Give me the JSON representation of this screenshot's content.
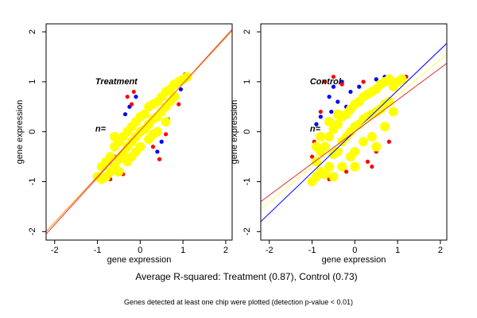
{
  "chart_data": [
    {
      "type": "scatter",
      "xlabel": "gene expression",
      "ylabel": "gene expression",
      "annotations": [
        "Treatment",
        "n="
      ],
      "xlim": [
        -2.2,
        2.15
      ],
      "ylim": [
        -2.17,
        2.16
      ],
      "xticks": [
        -2,
        -1,
        0,
        1,
        2
      ],
      "yticks": [
        -2,
        -1,
        0,
        1,
        2
      ],
      "series": [
        {
          "color": "#0000ff",
          "x": [
            -0.25,
            0.65,
            -0.9,
            0.5,
            0.4,
            -0.1,
            0.95,
            -0.35
          ],
          "y": [
            0.5,
            0.25,
            -0.95,
            -0.2,
            -0.4,
            0.7,
            0.85,
            0.35
          ]
        },
        {
          "color": "#ff0000",
          "x": [
            -0.3,
            -0.2,
            0.5,
            0.6,
            -0.7,
            -0.4,
            0.45,
            0.9,
            -0.15,
            0.3,
            -0.6,
            1.05
          ],
          "y": [
            0.7,
            0.55,
            0.35,
            -0.05,
            -0.95,
            -0.85,
            -0.55,
            0.55,
            0.8,
            -0.3,
            -0.5,
            1.15
          ]
        },
        {
          "color": "#ffff00",
          "x": [
            -1,
            -0.9,
            -0.9,
            -0.8,
            -0.8,
            -0.7,
            -0.7,
            -0.6,
            -0.6,
            -0.5,
            -0.5,
            -0.5,
            -0.4,
            -0.4,
            -0.3,
            -0.3,
            -0.3,
            -0.2,
            -0.2,
            -0.1,
            -0.1,
            -0.1,
            0,
            0,
            0,
            0.1,
            0.1,
            0.2,
            0.2,
            0.2,
            0.3,
            0.3,
            0.4,
            0.4,
            0.4,
            0.5,
            0.5,
            0.6,
            0.6,
            0.7,
            0.7,
            0.8,
            0.8,
            0.9,
            1.0,
            1.1,
            -0.6,
            0.6,
            -0.2,
            0.3
          ],
          "y": [
            -0.9,
            -0.7,
            -0.95,
            -0.6,
            -0.9,
            -0.5,
            -0.8,
            -0.3,
            -0.7,
            -0.2,
            -0.55,
            -0.8,
            -0.1,
            -0.45,
            0,
            -0.3,
            -0.6,
            0.1,
            -0.2,
            0.2,
            -0.1,
            -0.4,
            0.3,
            0,
            -0.3,
            0.35,
            0.05,
            0.5,
            0.15,
            -0.15,
            0.55,
            0.25,
            0.6,
            0.3,
            0,
            0.7,
            0.4,
            0.8,
            0.5,
            0.85,
            0.6,
            0.95,
            0.7,
            1.0,
            1.05,
            1.1,
            -0.1,
            0.2,
            -0.5,
            -0.05
          ]
        }
      ],
      "lines": [
        {
          "color": "#e03030",
          "x": [
            -2.2,
            2.15
          ],
          "y": [
            -2.05,
            2.05
          ]
        },
        {
          "color": "#ff8c00",
          "x": [
            -2.2,
            2.15
          ],
          "y": [
            -2.0,
            2.02
          ]
        }
      ]
    },
    {
      "type": "scatter",
      "xlabel": "gene expression",
      "ylabel": "gene expression",
      "annotations": [
        "Control",
        "n="
      ],
      "xlim": [
        -2.2,
        2.15
      ],
      "ylim": [
        -2.17,
        2.16
      ],
      "xticks": [
        -2,
        -1,
        0,
        1,
        2
      ],
      "yticks": [
        -2,
        -1,
        0,
        1,
        2
      ],
      "series": [
        {
          "color": "#0000ff",
          "x": [
            -0.6,
            -0.5,
            -0.4,
            -0.3,
            -0.1,
            0.1,
            0.3,
            0.5,
            0.7,
            -0.8,
            -0.9,
            -0.2,
            0.8,
            -0.55
          ],
          "y": [
            0.7,
            0.9,
            0.6,
            1.0,
            0.8,
            0.9,
            0.7,
            1.05,
            1.1,
            0.3,
            0.15,
            0.5,
            1.0,
            0.4
          ]
        },
        {
          "color": "#ff0000",
          "x": [
            -0.7,
            -0.5,
            -0.3,
            0.2,
            0.6,
            0.9,
            1.0,
            -0.95,
            -0.9,
            0.3,
            0.5,
            0.7,
            -0.2,
            -0.6,
            1.2,
            0.0,
            0.4,
            0.8,
            -0.8,
            -1.0
          ],
          "y": [
            1.0,
            1.1,
            0.95,
            1.0,
            1.0,
            0.9,
            1.05,
            -0.2,
            -0.9,
            -0.6,
            -0.4,
            0.1,
            -0.8,
            -0.95,
            1.1,
            -0.75,
            -0.7,
            -0.2,
            0.4,
            -0.5
          ]
        },
        {
          "color": "#ffff00",
          "x": [
            -1,
            -0.9,
            -0.9,
            -0.8,
            -0.8,
            -0.7,
            -0.7,
            -0.6,
            -0.6,
            -0.5,
            -0.5,
            -0.5,
            -0.4,
            -0.4,
            -0.3,
            -0.3,
            -0.3,
            -0.2,
            -0.2,
            -0.1,
            -0.1,
            -0.1,
            0,
            0,
            0,
            0.1,
            0.1,
            0.2,
            0.2,
            0.2,
            0.3,
            0.3,
            0.4,
            0.4,
            0.4,
            0.5,
            0.5,
            0.6,
            0.6,
            0.7,
            0.7,
            0.8,
            0.8,
            0.9,
            1.0,
            1.1,
            -0.8,
            -0.6,
            -0.4,
            0.0,
            0.5,
            0.7,
            -0.9,
            0.9
          ],
          "y": [
            -1.0,
            -0.6,
            -0.9,
            -0.4,
            -0.8,
            -0.3,
            -0.85,
            -0.1,
            -0.7,
            0.05,
            -0.45,
            -0.9,
            0.15,
            -0.4,
            0.3,
            -0.2,
            -0.7,
            0.35,
            -0.1,
            0.45,
            0.0,
            -0.5,
            0.55,
            0.1,
            -0.4,
            0.6,
            0.15,
            0.7,
            0.25,
            -0.2,
            0.75,
            0.3,
            0.8,
            0.35,
            -0.1,
            0.85,
            0.4,
            0.95,
            0.45,
            1.0,
            0.55,
            1.05,
            0.6,
            0.9,
            1.0,
            1.05,
            -0.1,
            0.2,
            0.35,
            -0.7,
            -0.3,
            0.1,
            -0.3,
            0.4
          ]
        }
      ],
      "lines": [
        {
          "color": "#0000ff",
          "x": [
            -2.2,
            2.15
          ],
          "y": [
            -1.8,
            1.77
          ]
        },
        {
          "color": "#ffff66",
          "x": [
            -2.2,
            2.15
          ],
          "y": [
            -1.55,
            1.55
          ]
        },
        {
          "color": "#e03030",
          "x": [
            -2.2,
            2.15
          ],
          "y": [
            -1.4,
            1.37
          ]
        }
      ]
    }
  ],
  "caption": "Average R-squared: Treatment (0.87), Control (0.73)",
  "footnote": "Genes detected at least one chip were plotted (detection p-value < 0.01)"
}
